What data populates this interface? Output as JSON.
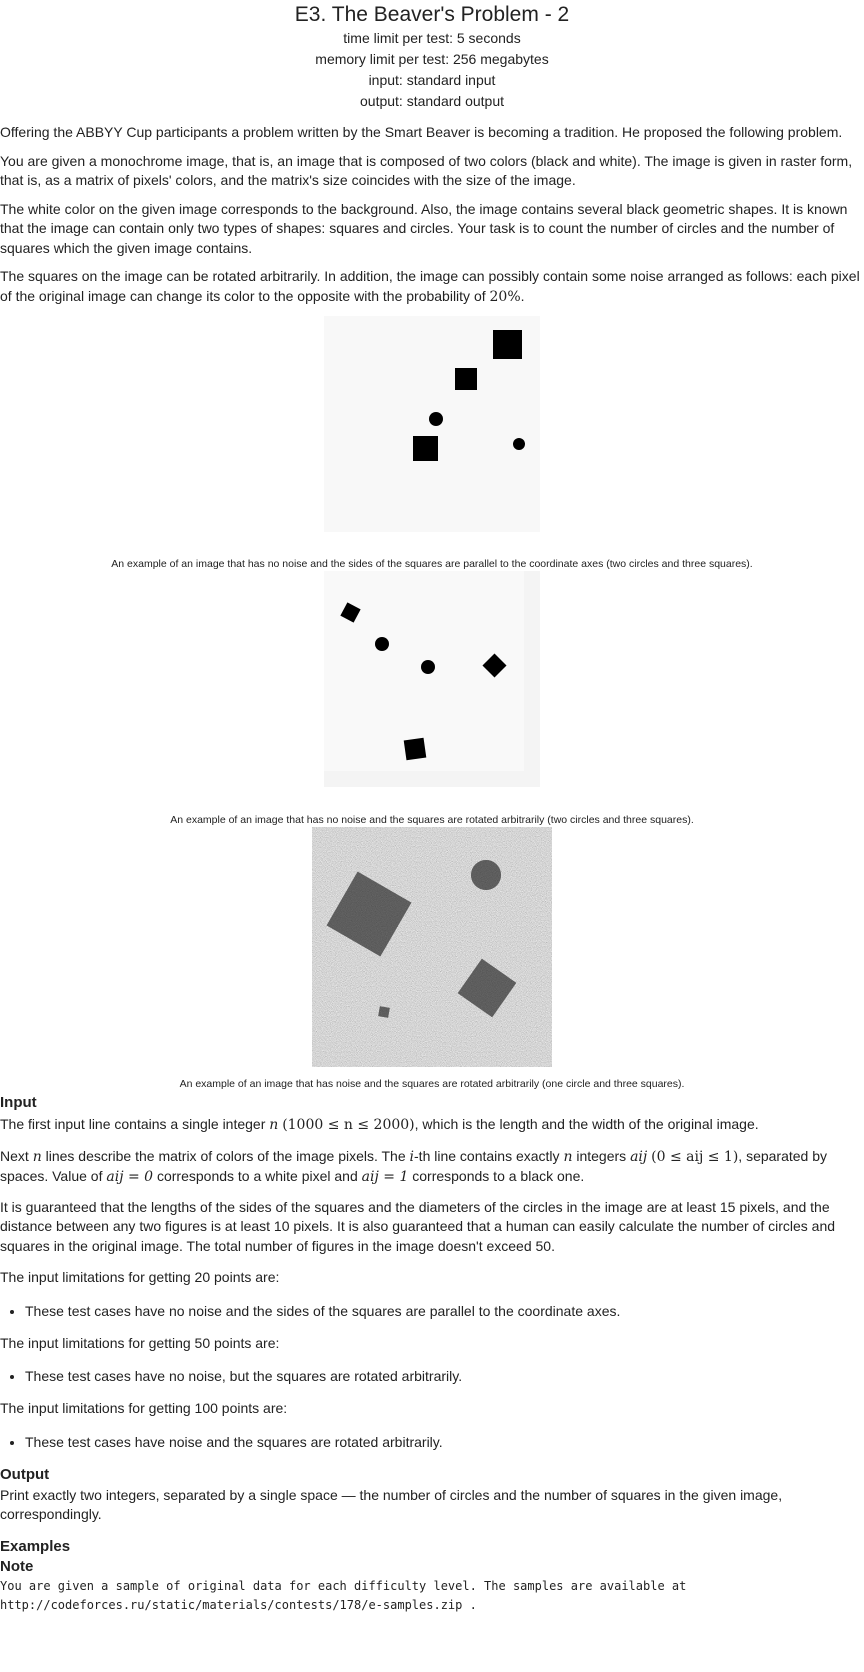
{
  "header": {
    "title": "E3. The Beaver's Problem - 2",
    "time_limit": "time limit per test: 5 seconds",
    "memory_limit": "memory limit per test: 256 megabytes",
    "input": "input: standard input",
    "output": "output: standard output"
  },
  "statement": {
    "p1": "Offering the ABBYY Cup participants a problem written by the Smart Beaver is becoming a tradition. He proposed the following problem.",
    "p2": "You are given a monochrome image, that is, an image that is composed of two colors (black and white). The image is given in raster form, that is, as a matrix of pixels' colors, and the matrix's size coincides with the size of the image.",
    "p3": "The white color on the given image corresponds to the background. Also, the image contains several black geometric shapes. It is known that the image can contain only two types of shapes: squares and circles. Your task is to count the number of circles and the number of squares which the given image contains.",
    "p4_a": "The squares on the image can be rotated arbitrarily. In addition, the image can possibly contain some noise arranged as follows: each pixel of the original image can change its color to the opposite with the probability of",
    "p4_math": "20%",
    "p4_b": "."
  },
  "figures": {
    "caption1": "An example of an image that has no noise and the sides of the squares are parallel to the coordinate axes (two circles and three squares).",
    "caption2": "An example of an image that has no noise and the squares are rotated arbitrarily (two circles and three squares).",
    "caption3": "An example of an image that has noise and the squares are rotated arbitrarily (one circle and three squares)."
  },
  "input_section": {
    "title": "Input",
    "p1_a": "The first input line contains a single integer",
    "p1_n": "n",
    "p1_math": "(1000 ≤ n ≤ 2000)",
    "p1_b": ", which is the length and the width of the original image.",
    "p2_a": "Next",
    "p2_n": "n",
    "p2_b": "lines describe the matrix of colors of the image pixels. The",
    "p2_i": "i",
    "p2_c": "-th line contains exactly",
    "p2_n2": "n",
    "p2_d": "integers",
    "p2_aij": "aij",
    "p2_math": "(0 ≤ aij ≤ 1)",
    "p2_e": ", separated by spaces. Value of",
    "p2_eq0": "aij = 0",
    "p2_f": "corresponds to a white pixel and",
    "p2_eq1": "aij = 1",
    "p2_g": "corresponds to a black one.",
    "p3": "It is guaranteed that the lengths of the sides of the squares and the diameters of the circles in the image are at least 15 pixels, and the distance between any two figures is at least 10 pixels. It is also guaranteed that a human can easily calculate the number of circles and squares in the original image. The total number of figures in the image doesn't exceed 50.",
    "lim20": "The input limitations for getting 20 points are:",
    "lim20_item": "These test cases have no noise and the sides of the squares are parallel to the coordinate axes.",
    "lim50": "The input limitations for getting 50 points are:",
    "lim50_item": "These test cases have no noise, but the squares are rotated arbitrarily.",
    "lim100": "The input limitations for getting 100 points are:",
    "lim100_item": "These test cases have noise and the squares are rotated arbitrarily."
  },
  "output_section": {
    "title": "Output",
    "p1": "Print exactly two integers, separated by a single space — the number of circles and the number of squares in the given image, correspondingly."
  },
  "examples": {
    "title": "Examples"
  },
  "note": {
    "title": "Note",
    "line1": "You are given a sample of original data for each difficulty level. The samples are available at",
    "line2": "http://codeforces.ru/static/materials/contests/178/e-samples.zip ."
  }
}
